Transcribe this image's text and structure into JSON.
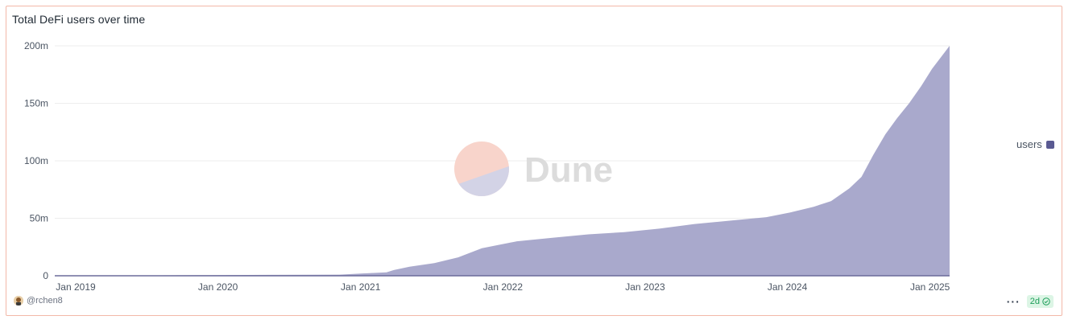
{
  "card": {
    "title": "Total DeFi users over time"
  },
  "chart_data": {
    "type": "area",
    "title": "Total DeFi users over time",
    "xlabel": "",
    "ylabel": "",
    "x_ticks": [
      "Jan 2019",
      "Jan 2020",
      "Jan 2021",
      "Jan 2022",
      "Jan 2023",
      "Jan 2024",
      "Jan 2025"
    ],
    "y_ticks": [
      "0",
      "50m",
      "100m",
      "150m",
      "200m"
    ],
    "y_tick_values": [
      0,
      50000000,
      100000000,
      150000000,
      200000000
    ],
    "ylim": [
      0,
      200000000
    ],
    "xlim": [
      "2019-01-01",
      "2025-04-15"
    ],
    "grid": true,
    "legend_position": "right",
    "series": [
      {
        "name": "users",
        "color": "#a9a9cc",
        "line_color": "#6b6b9a",
        "x": [
          "2019-01-01",
          "2019-07-01",
          "2020-01-01",
          "2020-07-01",
          "2021-01-01",
          "2021-03-01",
          "2021-05-01",
          "2021-05-20",
          "2021-07-01",
          "2021-09-01",
          "2021-11-01",
          "2022-01-01",
          "2022-04-01",
          "2022-07-01",
          "2022-10-01",
          "2023-01-01",
          "2023-04-01",
          "2023-07-01",
          "2023-10-01",
          "2024-01-01",
          "2024-03-01",
          "2024-05-01",
          "2024-06-15",
          "2024-08-01",
          "2024-09-01",
          "2024-10-01",
          "2024-11-01",
          "2024-12-01",
          "2025-01-01",
          "2025-02-01",
          "2025-03-01",
          "2025-04-15"
        ],
        "values": [
          0,
          200000,
          500000,
          800000,
          1000000,
          2000000,
          3000000,
          5000000,
          8000000,
          11000000,
          16000000,
          24000000,
          30000000,
          33000000,
          36000000,
          38000000,
          41000000,
          45000000,
          48000000,
          51000000,
          55000000,
          60000000,
          65000000,
          76000000,
          86000000,
          105000000,
          123000000,
          137000000,
          150000000,
          165000000,
          180000000,
          200000000
        ]
      }
    ]
  },
  "watermark": {
    "text": "Dune"
  },
  "legend": {
    "label": "users",
    "color": "#5a5a92"
  },
  "footer": {
    "author": "@rchen8",
    "more_label": "···",
    "freshness": "2d"
  }
}
